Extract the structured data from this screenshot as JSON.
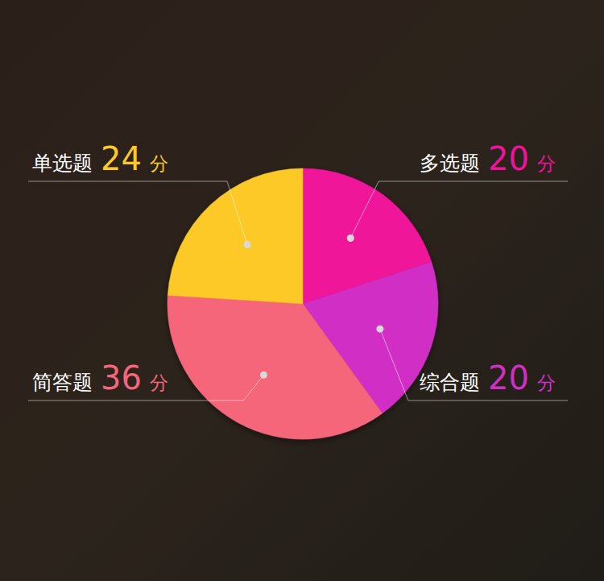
{
  "chart_data": {
    "type": "pie",
    "categories": [
      "多选题",
      "综合题",
      "简答题",
      "单选题"
    ],
    "values": [
      20,
      20,
      36,
      24
    ],
    "value_labels": [
      "20 分",
      "20 分",
      "36 分",
      "24 分"
    ],
    "colors": [
      "#f0129a",
      "#d02fc4",
      "#f5667a",
      "#fdc926"
    ],
    "data_labels": true
  }
}
